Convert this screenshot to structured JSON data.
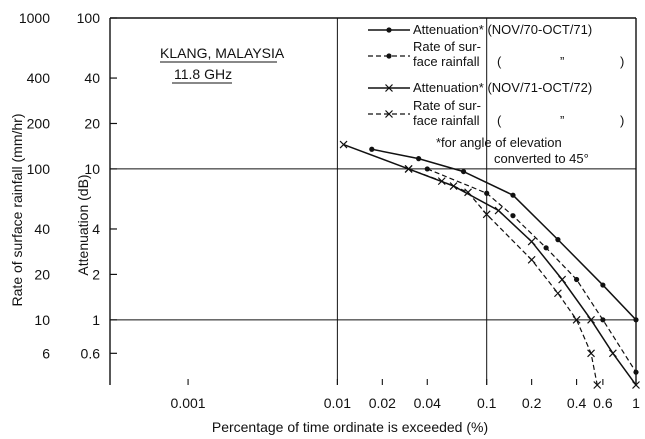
{
  "chart_data": {
    "type": "line",
    "x_scale": "log",
    "xlim": [
      0.0003,
      1
    ],
    "x_ticks": [
      {
        "value": 0.001,
        "label": "0.001"
      },
      {
        "value": 0.01,
        "label": "0.01"
      },
      {
        "value": 0.02,
        "label": "0.02"
      },
      {
        "value": 0.04,
        "label": "0.04"
      },
      {
        "value": 0.1,
        "label": "0.1"
      },
      {
        "value": 0.2,
        "label": "0.2"
      },
      {
        "value": 0.4,
        "label": "0.4"
      },
      {
        "value": 0.6,
        "label": "0.6"
      },
      {
        "value": 1,
        "label": "1"
      }
    ],
    "attenuation_axis": {
      "label": "Attenuation (dB)",
      "scale": "log",
      "range": [
        0.37,
        100
      ],
      "ticks": [
        {
          "value": 100,
          "label": "100"
        },
        {
          "value": 40,
          "label": "40"
        },
        {
          "value": 20,
          "label": "20"
        },
        {
          "value": 10,
          "label": "10"
        },
        {
          "value": 4,
          "label": "4"
        },
        {
          "value": 2,
          "label": "2"
        },
        {
          "value": 1,
          "label": "1"
        },
        {
          "value": 0.6,
          "label": "0.6"
        }
      ]
    },
    "rainfall_axis": {
      "label": "Rate of surface rainfall (mm/hr)",
      "ticks": [
        "1000",
        "400",
        "200",
        "100",
        "40",
        "20",
        "10",
        "6"
      ]
    },
    "xlabel": "Percentage of time ordinate is exceeded (%)",
    "annotation": {
      "line1": "KLANG, MALAYSIA",
      "line2": "11.8 GHz"
    },
    "footnote": {
      "line1": "*for angle of elevation",
      "line2": "converted to 45°"
    },
    "legend": {
      "position": "top-right",
      "entries": [
        {
          "line1": "Attenuation* (NOV/70-OCT/71)",
          "line2": ""
        },
        {
          "line1": "Rate of sur-",
          "line2": "face rainfall"
        },
        {
          "line1": "Attenuation* (NOV/71-OCT/72)",
          "line2": ""
        },
        {
          "line1": "Rate of sur-",
          "line2": "face rainfall"
        }
      ],
      "ditto_mark": "”"
    },
    "grid": "reference lines at x = 0.01, 0.1 and y = 10, 1 dB",
    "series": [
      {
        "name": "Attenuation* (NOV/70-OCT/71)",
        "style": "solid",
        "marker": "dot",
        "x": [
          0.017,
          0.035,
          0.07,
          0.15,
          0.3,
          0.6,
          1.0
        ],
        "y": [
          13.5,
          11.7,
          9.6,
          6.7,
          3.4,
          1.7,
          1.0
        ]
      },
      {
        "name": "Rate of surface rainfall (NOV/70-OCT/71)",
        "style": "dashed",
        "marker": "dot",
        "x": [
          0.04,
          0.1,
          0.15,
          0.25,
          0.4,
          0.6,
          1.0
        ],
        "y": [
          10.0,
          6.9,
          4.9,
          3.0,
          1.85,
          1.0,
          0.45
        ]
      },
      {
        "name": "Attenuation* (NOV/71-OCT/72)",
        "style": "solid",
        "marker": "x",
        "x": [
          0.011,
          0.03,
          0.06,
          0.12,
          0.2,
          0.32,
          0.5,
          0.7,
          1.0
        ],
        "y": [
          14.5,
          10.0,
          7.7,
          5.3,
          3.3,
          1.85,
          1.0,
          0.6,
          0.37
        ]
      },
      {
        "name": "Rate of surface rainfall (NOV/71-OCT/72)",
        "style": "dashed",
        "marker": "x",
        "x": [
          0.03,
          0.05,
          0.075,
          0.1,
          0.2,
          0.3,
          0.4,
          0.5,
          0.55
        ],
        "y": [
          10.0,
          8.3,
          7.0,
          5.0,
          2.5,
          1.5,
          1.0,
          0.6,
          0.37
        ]
      }
    ]
  }
}
